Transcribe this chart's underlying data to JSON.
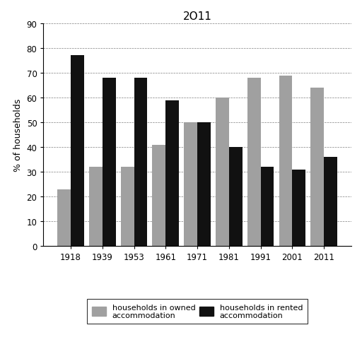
{
  "title": "2O11",
  "years": [
    "1918",
    "1939",
    "1953",
    "1961",
    "1971",
    "1981",
    "1991",
    "2001",
    "2011"
  ],
  "owned": [
    23,
    32,
    32,
    41,
    50,
    60,
    68,
    69,
    64
  ],
  "rented": [
    77,
    68,
    68,
    59,
    50,
    40,
    32,
    31,
    36
  ],
  "owned_color": "#a0a0a0",
  "rented_color": "#111111",
  "ylabel": "% of households",
  "ylim": [
    0,
    90
  ],
  "yticks": [
    0,
    10,
    20,
    30,
    40,
    50,
    60,
    70,
    80,
    90
  ],
  "legend_owned": "households in owned\naccommodation",
  "legend_rented": "households in rented\naccommodation",
  "bar_width": 0.42,
  "figsize": [
    5.12,
    4.85
  ],
  "dpi": 100
}
